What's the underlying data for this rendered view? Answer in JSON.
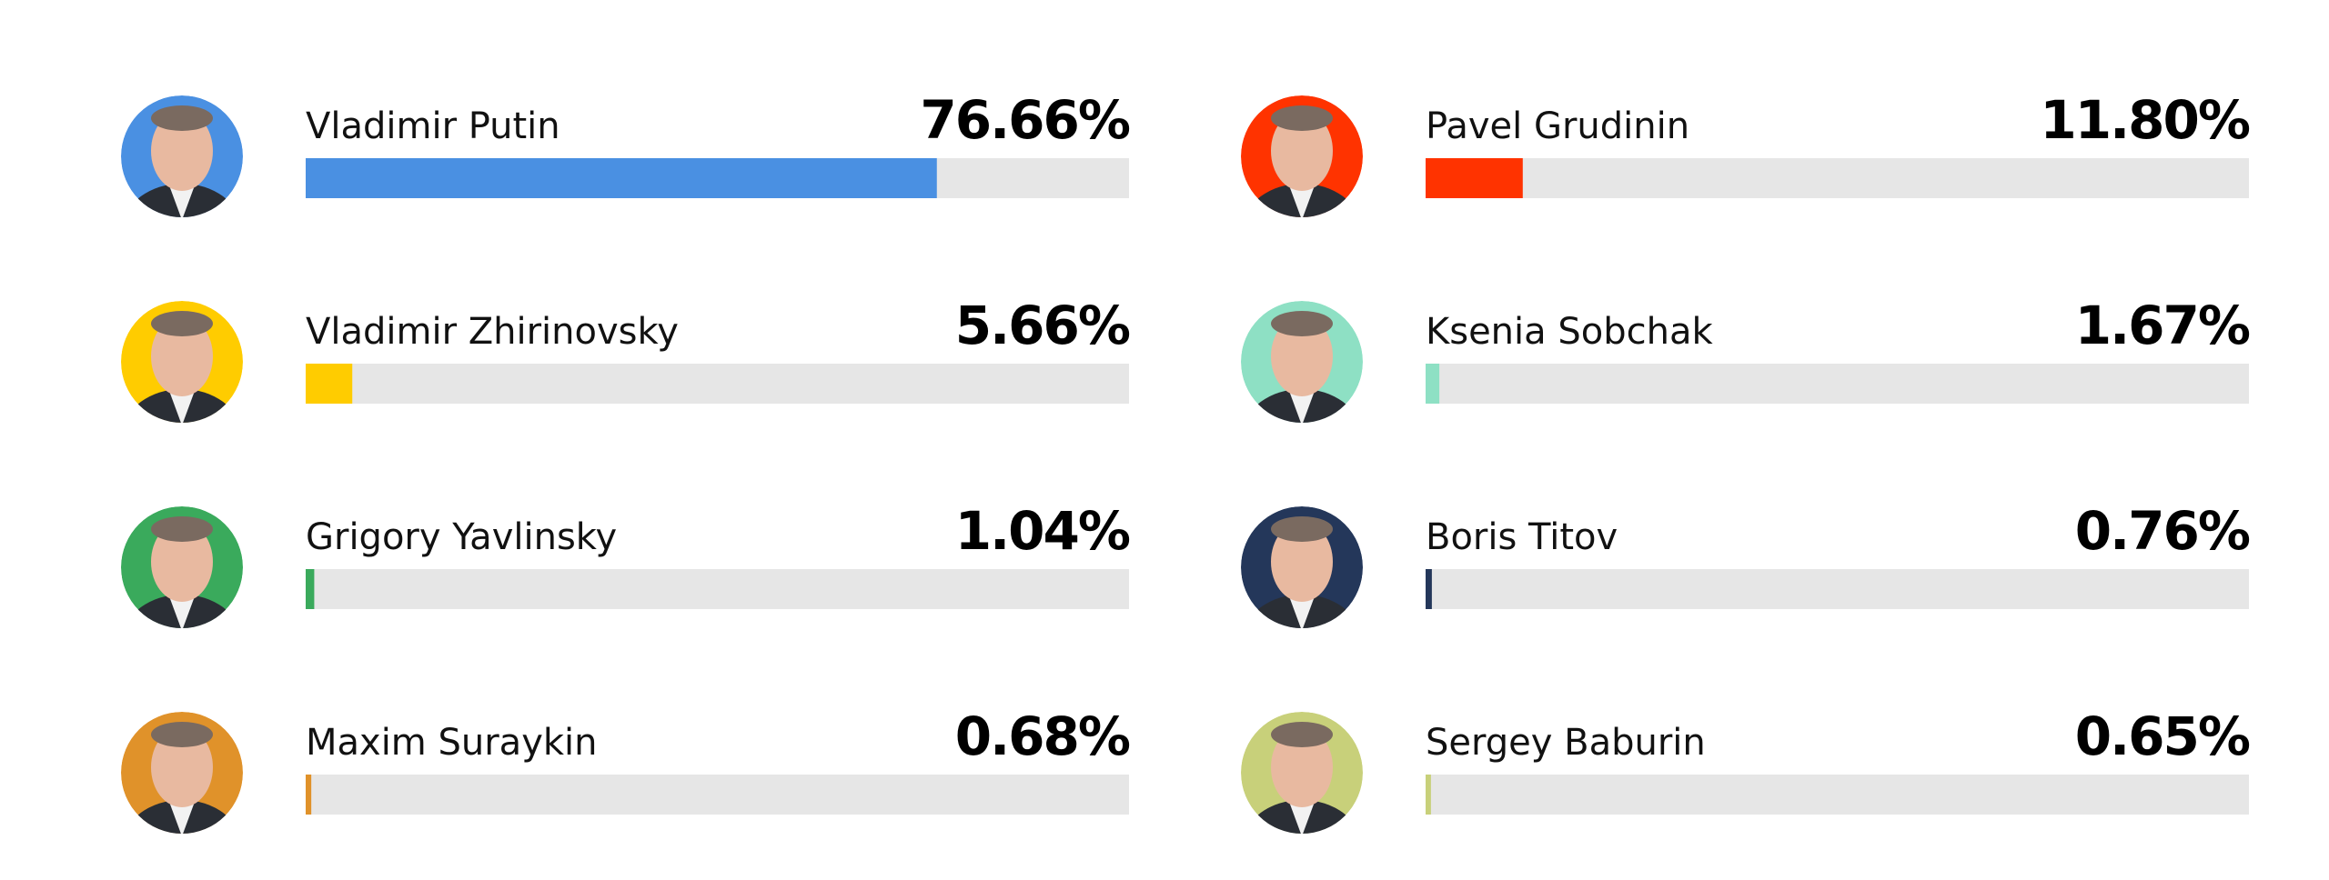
{
  "chart_data": {
    "type": "bar",
    "orientation": "horizontal",
    "categories": [
      "Vladimir Putin",
      "Pavel Grudinin",
      "Vladimir Zhirinovsky",
      "Ksenia Sobchak",
      "Grigory Yavlinsky",
      "Boris Titov",
      "Maxim Suraykin",
      "Sergey Baburin"
    ],
    "values": [
      76.66,
      11.8,
      5.66,
      1.67,
      1.04,
      0.76,
      0.68,
      0.65
    ],
    "value_labels": [
      "76.66%",
      "11.80%",
      "5.66%",
      "1.67%",
      "1.04%",
      "0.76%",
      "0.68%",
      "0.65%"
    ],
    "colors": [
      "#4a90e2",
      "#ff3300",
      "#ffcc00",
      "#8ee0c4",
      "#3aaa5c",
      "#24375a",
      "#e0922a",
      "#c8d07a"
    ],
    "xlim": [
      0,
      100
    ]
  }
}
